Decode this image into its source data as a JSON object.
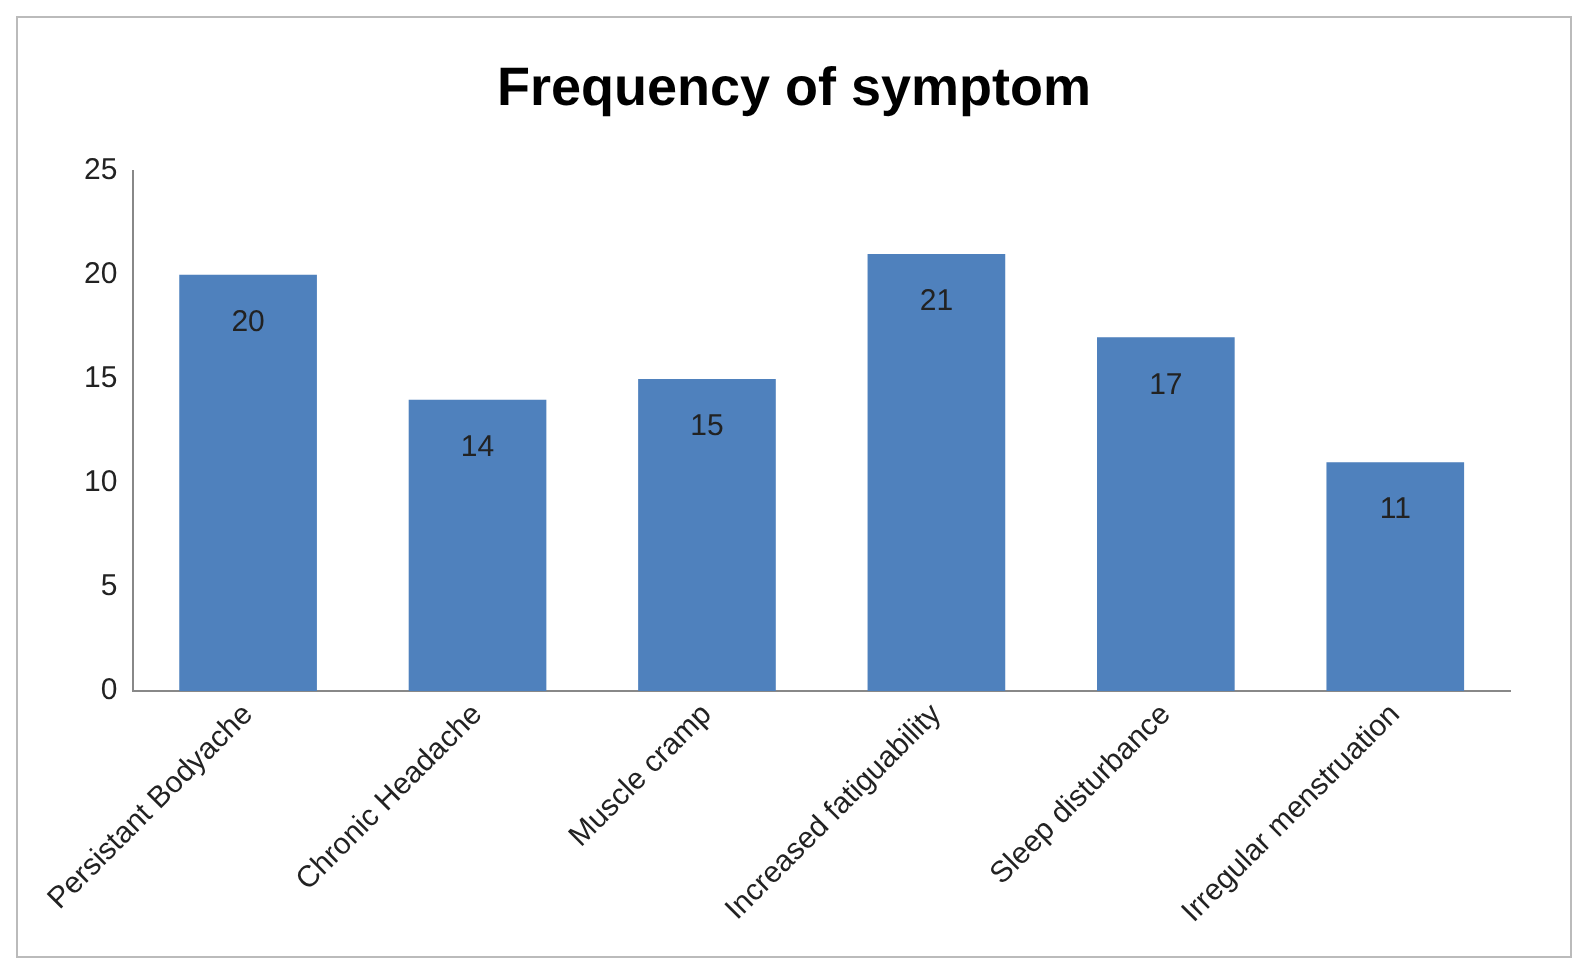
{
  "chart_data": {
    "type": "bar",
    "title": "Frequency of symptom",
    "categories": [
      "Persistant Bodyache",
      "Chronic Headache",
      "Muscle cramp",
      "Increased fatiguability",
      "Sleep disturbance",
      "Irregular menstruation"
    ],
    "values": [
      20,
      14,
      15,
      21,
      17,
      11
    ],
    "color": "#4f81bd",
    "ylim": [
      0,
      25
    ],
    "yticks": [
      0,
      5,
      10,
      15,
      20,
      25
    ],
    "grid": false,
    "legend": false,
    "data_labels": true
  }
}
